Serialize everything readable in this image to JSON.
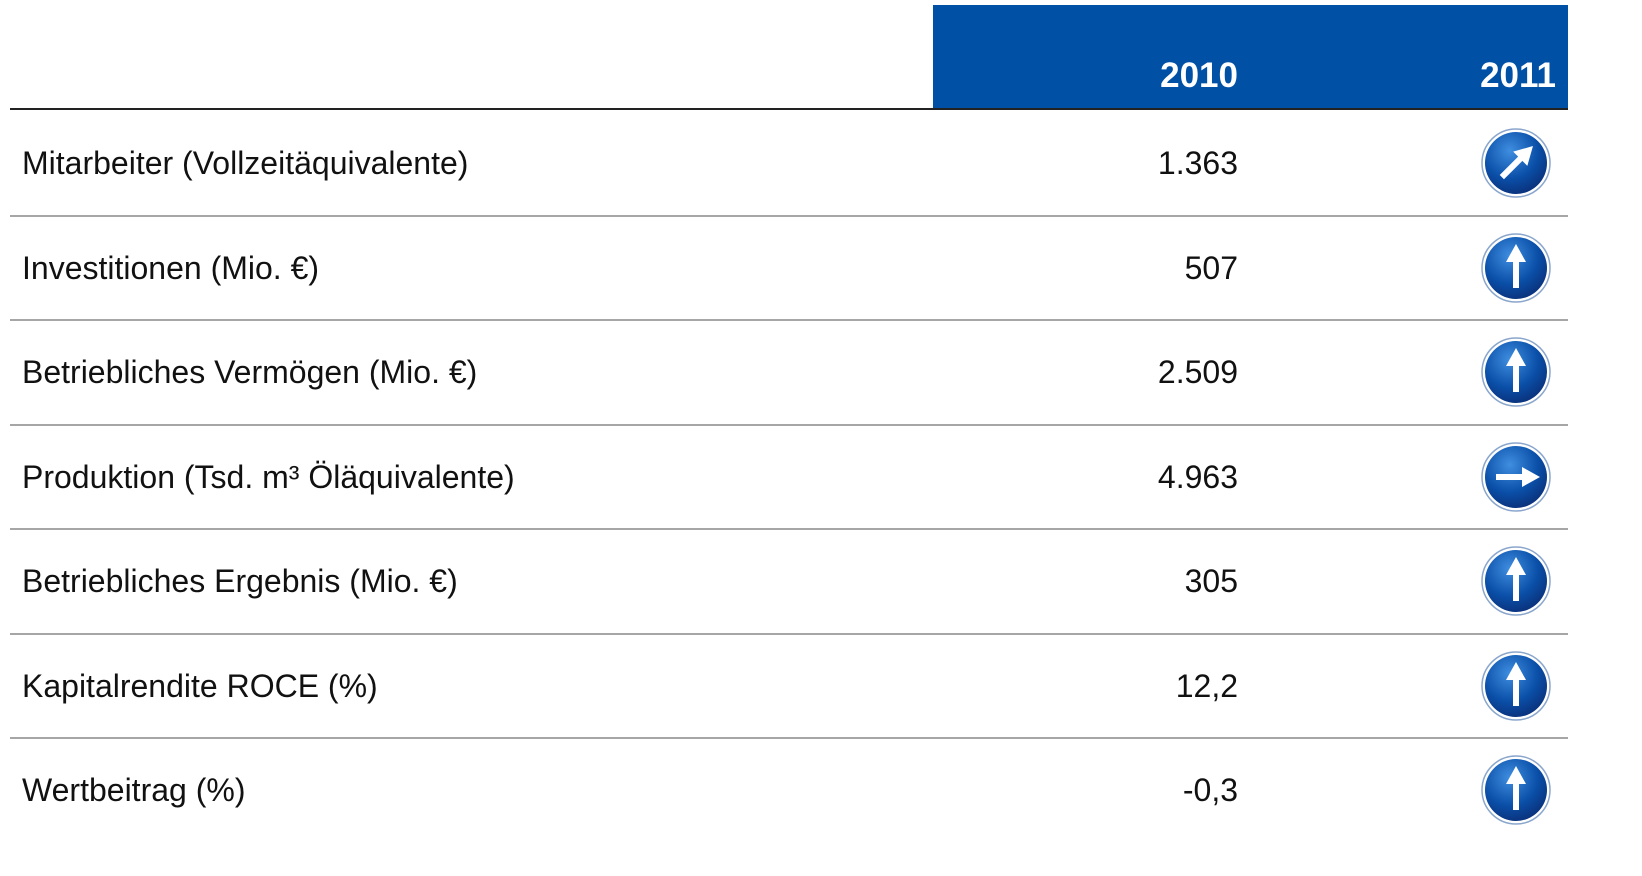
{
  "table": {
    "header": [
      "2010",
      "2011"
    ],
    "rows": [
      {
        "label": "Mitarbeiter (Vollzeitäquivalente)",
        "value_2010": "1.363",
        "trend_2011": "up-right"
      },
      {
        "label": "Investitionen (Mio. €)",
        "value_2010": "507",
        "trend_2011": "up"
      },
      {
        "label": "Betriebliches Vermögen (Mio. €)",
        "value_2010": "2.509",
        "trend_2011": "up"
      },
      {
        "label": "Produktion (Tsd. m³ Öläquivalente)",
        "value_2010": "4.963",
        "trend_2011": "right"
      },
      {
        "label": "Betriebliches Ergebnis (Mio. €)",
        "value_2010": "305",
        "trend_2011": "up"
      },
      {
        "label": "Kapitalrendite ROCE (%)",
        "value_2010": "12,2",
        "trend_2011": "up"
      },
      {
        "label": "Wertbeitrag (%)",
        "value_2010": "-0,3",
        "trend_2011": "up"
      }
    ]
  }
}
